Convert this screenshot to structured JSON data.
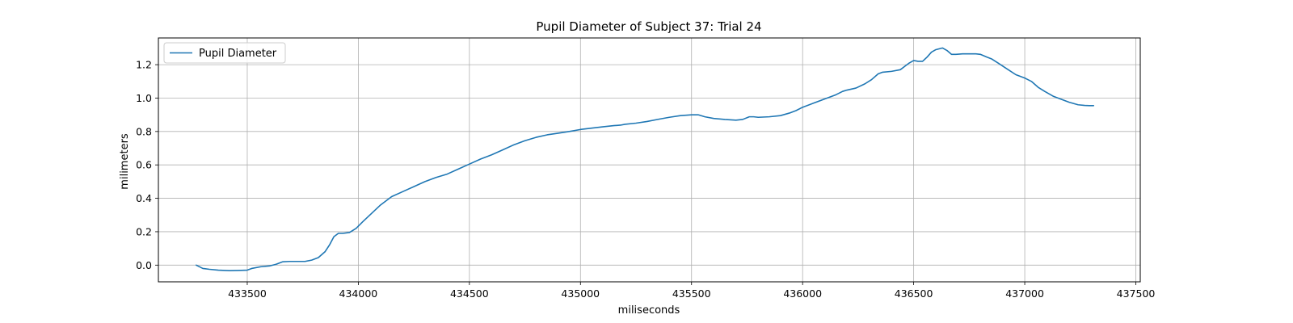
{
  "chart_data": {
    "type": "line",
    "title": "Pupil Diameter of Subject 37: Trial 24",
    "xlabel": "miliseconds",
    "ylabel": "milimeters",
    "xlim": [
      433100,
      437520
    ],
    "ylim": [
      -0.1,
      1.36
    ],
    "xticks": [
      433500,
      434000,
      434500,
      435000,
      435500,
      436000,
      436500,
      437000,
      437500
    ],
    "yticks": [
      0.0,
      0.2,
      0.4,
      0.6,
      0.8,
      1.0,
      1.2
    ],
    "ytick_format": 1,
    "grid": true,
    "legend": "upper left",
    "series": [
      {
        "name": "Pupil Diameter",
        "color": "#1f77b4",
        "x": [
          433270,
          433300,
          433330,
          433370,
          433420,
          433460,
          433500,
          433520,
          433560,
          433600,
          433630,
          433660,
          433690,
          433720,
          433760,
          433790,
          433820,
          433850,
          433870,
          433890,
          433910,
          433930,
          433960,
          433990,
          434020,
          434060,
          434100,
          434150,
          434200,
          434250,
          434300,
          434350,
          434400,
          434450,
          434500,
          434550,
          434600,
          434650,
          434700,
          434750,
          434800,
          434850,
          434900,
          434950,
          435000,
          435050,
          435100,
          435150,
          435180,
          435200,
          435250,
          435300,
          435350,
          435400,
          435450,
          435500,
          435530,
          435560,
          435600,
          435650,
          435700,
          435730,
          435760,
          435780,
          435800,
          435850,
          435900,
          435940,
          435970,
          436000,
          436050,
          436100,
          436150,
          436180,
          436200,
          436240,
          436280,
          436310,
          436340,
          436360,
          436400,
          436440,
          436460,
          436480,
          436500,
          436520,
          436540,
          436560,
          436580,
          436600,
          436630,
          436650,
          436670,
          436690,
          436720,
          436750,
          436780,
          436800,
          436830,
          436850,
          436880,
          436920,
          436960,
          437000,
          437030,
          437060,
          437090,
          437110,
          437130,
          437160,
          437200,
          437240,
          437270,
          437290,
          437310
        ],
        "y": [
          0.0,
          -0.02,
          -0.025,
          -0.03,
          -0.033,
          -0.032,
          -0.03,
          -0.02,
          -0.01,
          -0.005,
          0.005,
          0.02,
          0.022,
          0.022,
          0.022,
          0.03,
          0.045,
          0.08,
          0.12,
          0.17,
          0.19,
          0.19,
          0.195,
          0.22,
          0.26,
          0.31,
          0.36,
          0.41,
          0.44,
          0.47,
          0.5,
          0.525,
          0.545,
          0.575,
          0.605,
          0.635,
          0.66,
          0.69,
          0.72,
          0.745,
          0.765,
          0.78,
          0.79,
          0.8,
          0.812,
          0.82,
          0.828,
          0.835,
          0.838,
          0.843,
          0.85,
          0.86,
          0.873,
          0.885,
          0.895,
          0.9,
          0.9,
          0.888,
          0.878,
          0.872,
          0.868,
          0.872,
          0.888,
          0.888,
          0.885,
          0.888,
          0.895,
          0.91,
          0.925,
          0.945,
          0.97,
          0.995,
          1.02,
          1.04,
          1.048,
          1.06,
          1.085,
          1.11,
          1.145,
          1.155,
          1.16,
          1.17,
          1.19,
          1.21,
          1.225,
          1.22,
          1.22,
          1.245,
          1.275,
          1.29,
          1.3,
          1.285,
          1.262,
          1.262,
          1.265,
          1.265,
          1.265,
          1.262,
          1.245,
          1.235,
          1.21,
          1.175,
          1.14,
          1.12,
          1.1,
          1.065,
          1.04,
          1.025,
          1.01,
          0.995,
          0.975,
          0.96,
          0.956,
          0.955,
          0.955
        ]
      }
    ]
  }
}
